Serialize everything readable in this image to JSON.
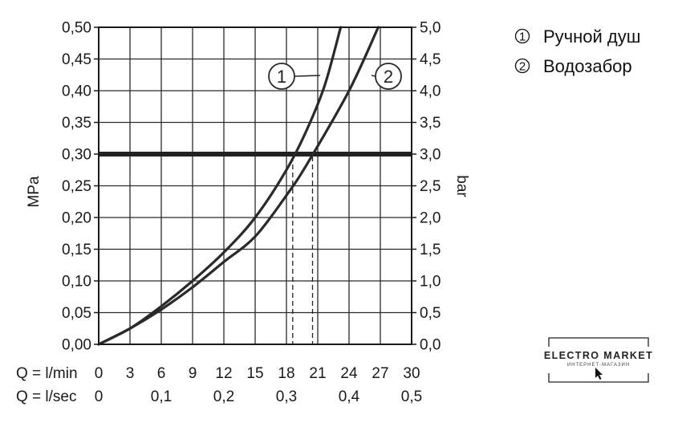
{
  "chart_data": {
    "type": "line",
    "y_left": {
      "label": "MPa",
      "range": [
        0,
        0.5
      ],
      "ticks": [
        "0,00",
        "0,05",
        "0,10",
        "0,15",
        "0,20",
        "0,25",
        "0,30",
        "0,35",
        "0,40",
        "0,45",
        "0,50"
      ]
    },
    "y_right": {
      "label": "bar",
      "range": [
        0,
        5
      ],
      "ticks": [
        "0,0",
        "0,5",
        "1,0",
        "1,5",
        "2,0",
        "2,5",
        "3,0",
        "3,5",
        "4,0",
        "4,5",
        "5,0"
      ]
    },
    "x": {
      "range": [
        0,
        30
      ],
      "lmin_label": "Q = l/min",
      "lmin_ticks": [
        "0",
        "3",
        "6",
        "9",
        "12",
        "15",
        "18",
        "21",
        "24",
        "27",
        "30"
      ],
      "lsec_label": "Q = l/sec",
      "lsec_ticks": [
        "0",
        "0,1",
        "0,2",
        "0,3",
        "0,4",
        "0,5"
      ]
    },
    "grid": true,
    "reference_line": {
      "y": 0.3
    },
    "series": [
      {
        "name": "Ручной душ",
        "marker": "1",
        "points": [
          [
            0,
            0
          ],
          [
            3,
            0.025
          ],
          [
            6,
            0.06
          ],
          [
            9,
            0.1
          ],
          [
            12,
            0.145
          ],
          [
            15,
            0.2
          ],
          [
            18,
            0.275
          ],
          [
            20,
            0.34
          ],
          [
            21.7,
            0.41
          ],
          [
            23.2,
            0.5
          ]
        ]
      },
      {
        "name": "Водозабор",
        "marker": "2",
        "points": [
          [
            0,
            0
          ],
          [
            3,
            0.025
          ],
          [
            6,
            0.055
          ],
          [
            9,
            0.09
          ],
          [
            12,
            0.13
          ],
          [
            15,
            0.17
          ],
          [
            18,
            0.235
          ],
          [
            20,
            0.285
          ],
          [
            24,
            0.4
          ],
          [
            26.8,
            0.5
          ]
        ]
      }
    ],
    "dropdown_x": [
      18.6,
      20.5
    ],
    "legend_position": "top-right"
  },
  "legend": {
    "items": [
      {
        "num": "1",
        "label": "Ручной душ"
      },
      {
        "num": "2",
        "label": "Водозабор"
      }
    ]
  },
  "watermark": {
    "title": "ELECTRO MARKET",
    "subtitle": "ИНТЕРНЕТ-МАГАЗИН"
  }
}
